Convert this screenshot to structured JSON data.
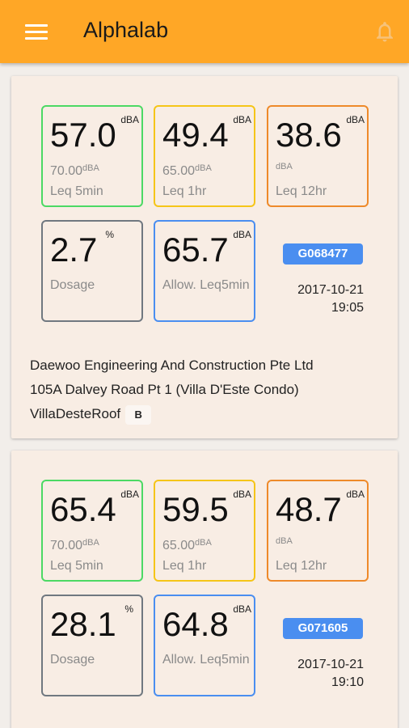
{
  "app": {
    "title": "Alphalab",
    "menu_icon": "hamburger-menu-icon",
    "notification_icon": "bell-icon"
  },
  "colors": {
    "appbar": "#ffa726",
    "card": "#f8ede4",
    "leq5min_border": "#4cd964",
    "leq1hr_border": "#f5c518",
    "leq12hr_border": "#ee8a2a",
    "dosage_border": "#707880",
    "allow_border": "#4a8ef0",
    "badge": "#4a8ef0"
  },
  "cards": [
    {
      "leq5min": {
        "value": "57.0",
        "unit": "dBA",
        "limit": "70.00",
        "limit_unit": "dBA",
        "label": "Leq 5min"
      },
      "leq1hr": {
        "value": "49.4",
        "unit": "dBA",
        "limit": "65.00",
        "limit_unit": "dBA",
        "label": "Leq 1hr"
      },
      "leq12hr": {
        "value": "38.6",
        "unit": "dBA",
        "sub_unit": "dBA",
        "label": "Leq 12hr"
      },
      "dosage": {
        "value": "2.7",
        "unit": "%",
        "label": "Dosage"
      },
      "allow": {
        "value": "65.7",
        "unit": "dBA",
        "label": "Allow. Leq5min"
      },
      "device_id": "G068477",
      "date": "2017-10-21",
      "time": "19:05",
      "company": "Daewoo Engineering And Construction Pte Ltd",
      "address": "105A Dalvey Road Pt 1 (Villa D'Este Condo)",
      "location": "VillaDesteRoof",
      "grade": "B"
    },
    {
      "leq5min": {
        "value": "65.4",
        "unit": "dBA",
        "limit": "70.00",
        "limit_unit": "dBA",
        "label": "Leq 5min"
      },
      "leq1hr": {
        "value": "59.5",
        "unit": "dBA",
        "limit": "65.00",
        "limit_unit": "dBA",
        "label": "Leq 1hr"
      },
      "leq12hr": {
        "value": "48.7",
        "unit": "dBA",
        "sub_unit": "dBA",
        "label": "Leq 12hr"
      },
      "dosage": {
        "value": "28.1",
        "unit": "%",
        "label": "Dosage"
      },
      "allow": {
        "value": "64.8",
        "unit": "dBA",
        "label": "Allow. Leq5min"
      },
      "device_id": "G071605",
      "date": "2017-10-21",
      "time": "19:10"
    }
  ]
}
